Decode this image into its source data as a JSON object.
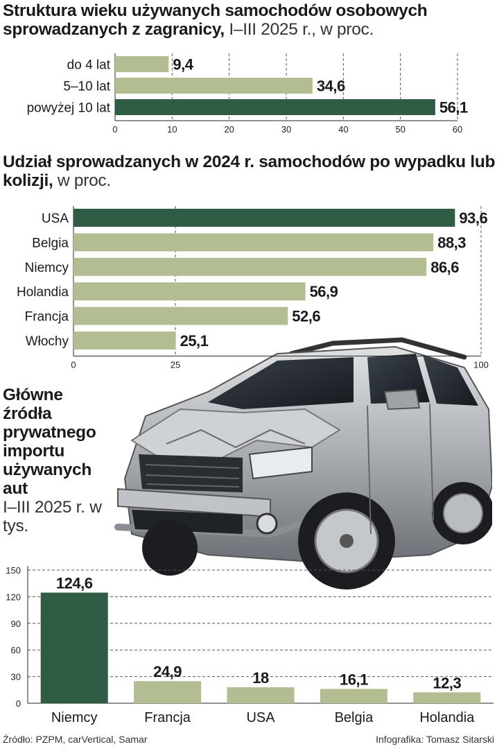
{
  "chart_data": [
    {
      "type": "bar",
      "orientation": "horizontal",
      "title": "Struktura wieku używanych samochodów osobowych sprowadzanych z zagranicy,",
      "subtitle": "I–III 2025 r., w proc.",
      "categories": [
        "do 4 lat",
        "5–10 lat",
        "powyżej 10 lat"
      ],
      "values": [
        9.4,
        34.6,
        56.1
      ],
      "value_labels": [
        "9,4",
        "34,6",
        "56,1"
      ],
      "highlight": [
        false,
        false,
        true
      ],
      "xlim": [
        0,
        60
      ],
      "ticks": [
        "0",
        "10",
        "20",
        "30",
        "40",
        "50",
        "60"
      ],
      "grid": true
    },
    {
      "type": "bar",
      "orientation": "horizontal",
      "title": "Udział sprowadzanych w 2024 r. samochodów po wypadku lub kolizji,",
      "subtitle": "w proc.",
      "categories": [
        "USA",
        "Belgia",
        "Niemcy",
        "Holandia",
        "Francja",
        "Włochy"
      ],
      "values": [
        93.6,
        88.3,
        86.6,
        56.9,
        52.6,
        25.1
      ],
      "value_labels": [
        "93,6",
        "88,3",
        "86,6",
        "56,9",
        "52,6",
        "25,1"
      ],
      "highlight": [
        true,
        false,
        false,
        false,
        false,
        false
      ],
      "xlim": [
        0,
        100
      ],
      "ticks": [
        "0",
        "25",
        "100"
      ],
      "grid": true
    },
    {
      "type": "bar",
      "orientation": "vertical",
      "title": "Główne źródła prywatnego importu używanych aut",
      "subtitle": "I–III 2025 r. w tys.",
      "categories": [
        "Niemcy",
        "Francja",
        "USA",
        "Belgia",
        "Holandia"
      ],
      "values": [
        124.6,
        24.9,
        18,
        16.1,
        12.3
      ],
      "value_labels": [
        "124,6",
        "24,9",
        "18",
        "16,1",
        "12,3"
      ],
      "highlight": [
        true,
        false,
        false,
        false,
        false
      ],
      "ylim": [
        0,
        150
      ],
      "ticks": [
        "0",
        "30",
        "60",
        "90",
        "120",
        "150"
      ],
      "grid": true
    }
  ],
  "colors": {
    "highlight": "#2e5c44",
    "bar": "#b3bd92"
  },
  "footer": {
    "source": "Źródło: PZPM, carVertical, Samar",
    "credit": "Infografika: Tomasz Sitarski"
  }
}
